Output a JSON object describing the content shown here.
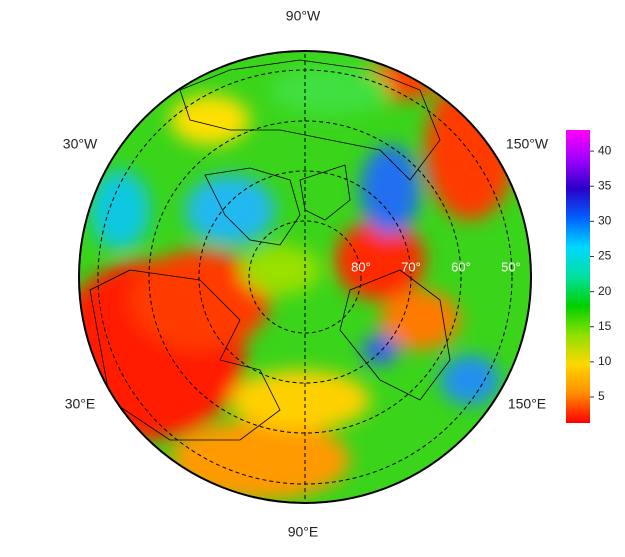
{
  "map": {
    "longitude_labels": [
      "90°W",
      "30°W",
      "150°W",
      "30°E",
      "150°E",
      "90°E"
    ],
    "latitude_labels": [
      "80°",
      "70°",
      "60°",
      "50°"
    ]
  },
  "colorbar": {
    "range": [
      1.3,
      43
    ],
    "ticks": [
      5,
      10,
      15,
      20,
      25,
      30,
      35,
      40
    ],
    "colors": [
      "#ff0000",
      "#ff8c00",
      "#ffd700",
      "#8fe000",
      "#00d000",
      "#00e0a0",
      "#00d8ff",
      "#0060ff",
      "#2a00c8",
      "#a000ff",
      "#ff00ff"
    ]
  }
}
